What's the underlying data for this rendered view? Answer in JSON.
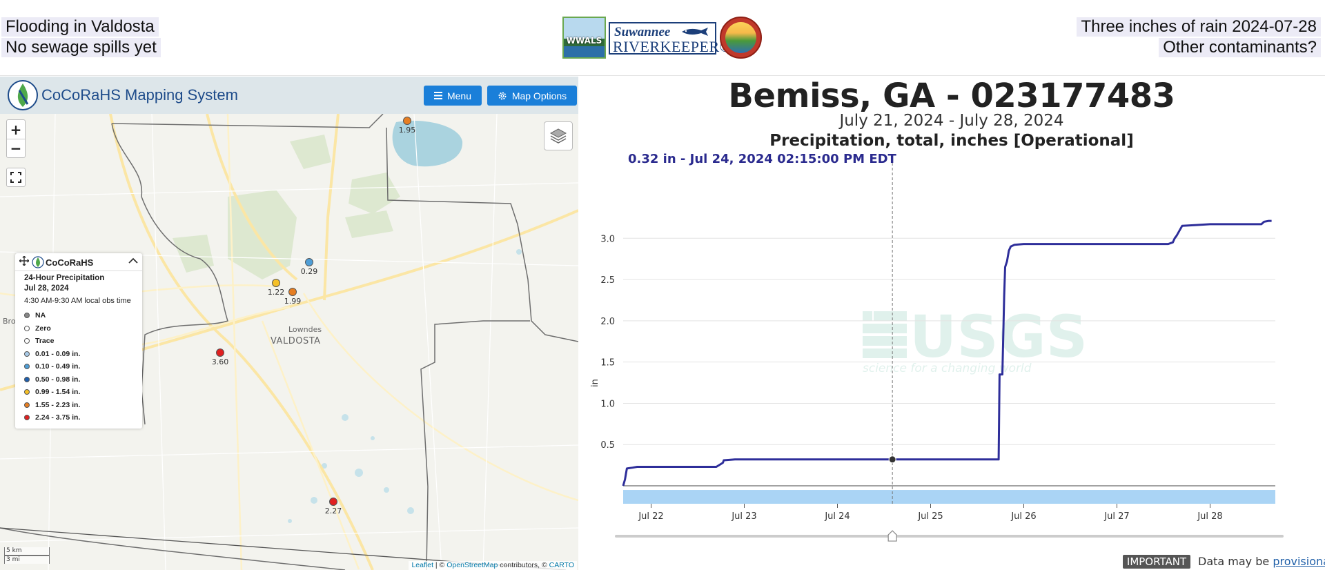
{
  "banner": {
    "left_line1": "Flooding in Valdosta",
    "left_line2": "No sewage spills yet",
    "right_line1": "Three inches of rain 2024-07-28",
    "right_line2": "Other contaminants?",
    "wwals_logo_text": "WWALS",
    "riverkeeper_top": "Suwannee",
    "riverkeeper_bottom": "RIVERKEEPER®"
  },
  "map": {
    "title": "CoCoRaHS Mapping System",
    "menu_label": "Menu",
    "map_options_label": "Map Options",
    "zoom_in": "+",
    "zoom_out": "−",
    "legend": {
      "brand": "CoCoRaHS",
      "title": "24-Hour Precipitation",
      "date": "Jul 28, 2024",
      "obs_time": "4:30 AM-9:30 AM local obs time",
      "items": [
        {
          "label": "NA",
          "color": "#888888"
        },
        {
          "label": "Zero",
          "color": "#ffffff"
        },
        {
          "label": "Trace",
          "color": "#ffffff"
        },
        {
          "label": "0.01 - 0.09 in.",
          "color": "#a9cbe8"
        },
        {
          "label": "0.10 - 0.49 in.",
          "color": "#4f9ed6"
        },
        {
          "label": "0.50 - 0.98 in.",
          "color": "#1f5fae"
        },
        {
          "label": "0.99 - 1.54 in.",
          "color": "#f5c027"
        },
        {
          "label": "1.55 - 2.23 in.",
          "color": "#e67e22"
        },
        {
          "label": "2.24 - 3.75 in.",
          "color": "#e02020"
        }
      ]
    },
    "stations": [
      {
        "value": "1.95",
        "color": "#e67e22"
      },
      {
        "value": "0.29",
        "color": "#4f9ed6"
      },
      {
        "value": "1.22",
        "color": "#f5c027"
      },
      {
        "value": "1.99",
        "color": "#e67e22"
      },
      {
        "value": "3.60",
        "color": "#e02020"
      },
      {
        "value": "2.27",
        "color": "#e02020"
      }
    ],
    "places": {
      "county": "Lowndes",
      "city": "VALDOSTA",
      "partial": "Bro"
    },
    "scale_km": "5 km",
    "scale_mi": "3 mi",
    "attribution": {
      "leaflet": "Leaflet",
      "sep1": " | © ",
      "osm": "OpenStreetMap",
      "mid": " contributors, © ",
      "carto": "CARTO"
    }
  },
  "chart": {
    "site_title": "Bemiss, GA - 023177483",
    "date_range": "July 21, 2024 - July 28, 2024",
    "parameter": "Precipitation, total, inches [Operational]",
    "tooltip": "0.32 in - Jul 24, 2024 02:15:00 PM EDT",
    "watermark_logo": "USGS",
    "watermark_tagline": "science for a changing world",
    "important_label": "IMPORTANT",
    "note_prefix": "Data may be ",
    "note_link": "provisional",
    "colors": {
      "line": "#2e2e9a",
      "band": "#aad4f5",
      "grid": "#e3e3e3"
    }
  },
  "chart_data": {
    "type": "line",
    "title": "Bemiss, GA - 023177483",
    "subtitle": "Precipitation, total, inches [Operational]",
    "xlabel": "",
    "ylabel": "in",
    "x_tick_labels": [
      "Jul 22",
      "Jul 23",
      "Jul 24",
      "Jul 25",
      "Jul 26",
      "Jul 27",
      "Jul 28"
    ],
    "y_ticks": [
      0.5,
      1.0,
      1.5,
      2.0,
      2.5,
      3.0
    ],
    "y_tick_labels": [
      "0.5",
      "1.0",
      "1.5",
      "2.0",
      "2.5",
      "3.0"
    ],
    "xlim": [
      21.7,
      28.7
    ],
    "ylim": [
      -0.1,
      3.83
    ],
    "grid": true,
    "legend": "none",
    "highlight": {
      "x": 24.59,
      "y": 0.32
    },
    "series": [
      {
        "x": [
          21.7,
          21.72,
          21.73,
          21.74,
          21.8,
          21.85,
          22.0,
          22.2,
          22.5,
          22.7,
          22.77,
          22.78,
          22.9,
          23.2,
          23.6,
          24.0,
          24.59,
          24.9,
          25.4,
          25.73,
          25.74,
          25.77,
          25.79,
          25.8,
          25.82,
          25.84,
          25.86,
          25.9,
          26.0,
          26.3,
          26.7,
          27.1,
          27.4,
          27.55,
          27.6,
          27.62,
          27.64,
          27.7,
          27.85,
          28.0,
          28.3,
          28.55,
          28.58,
          28.63,
          28.66
        ],
        "y": [
          0.0,
          0.08,
          0.15,
          0.21,
          0.22,
          0.23,
          0.23,
          0.23,
          0.23,
          0.23,
          0.28,
          0.31,
          0.32,
          0.32,
          0.32,
          0.32,
          0.32,
          0.32,
          0.32,
          0.32,
          1.35,
          1.35,
          2.3,
          2.65,
          2.72,
          2.85,
          2.9,
          2.92,
          2.93,
          2.93,
          2.93,
          2.93,
          2.93,
          2.93,
          2.95,
          3.0,
          3.03,
          3.15,
          3.16,
          3.17,
          3.17,
          3.17,
          3.2,
          3.21,
          3.21
        ]
      }
    ]
  }
}
